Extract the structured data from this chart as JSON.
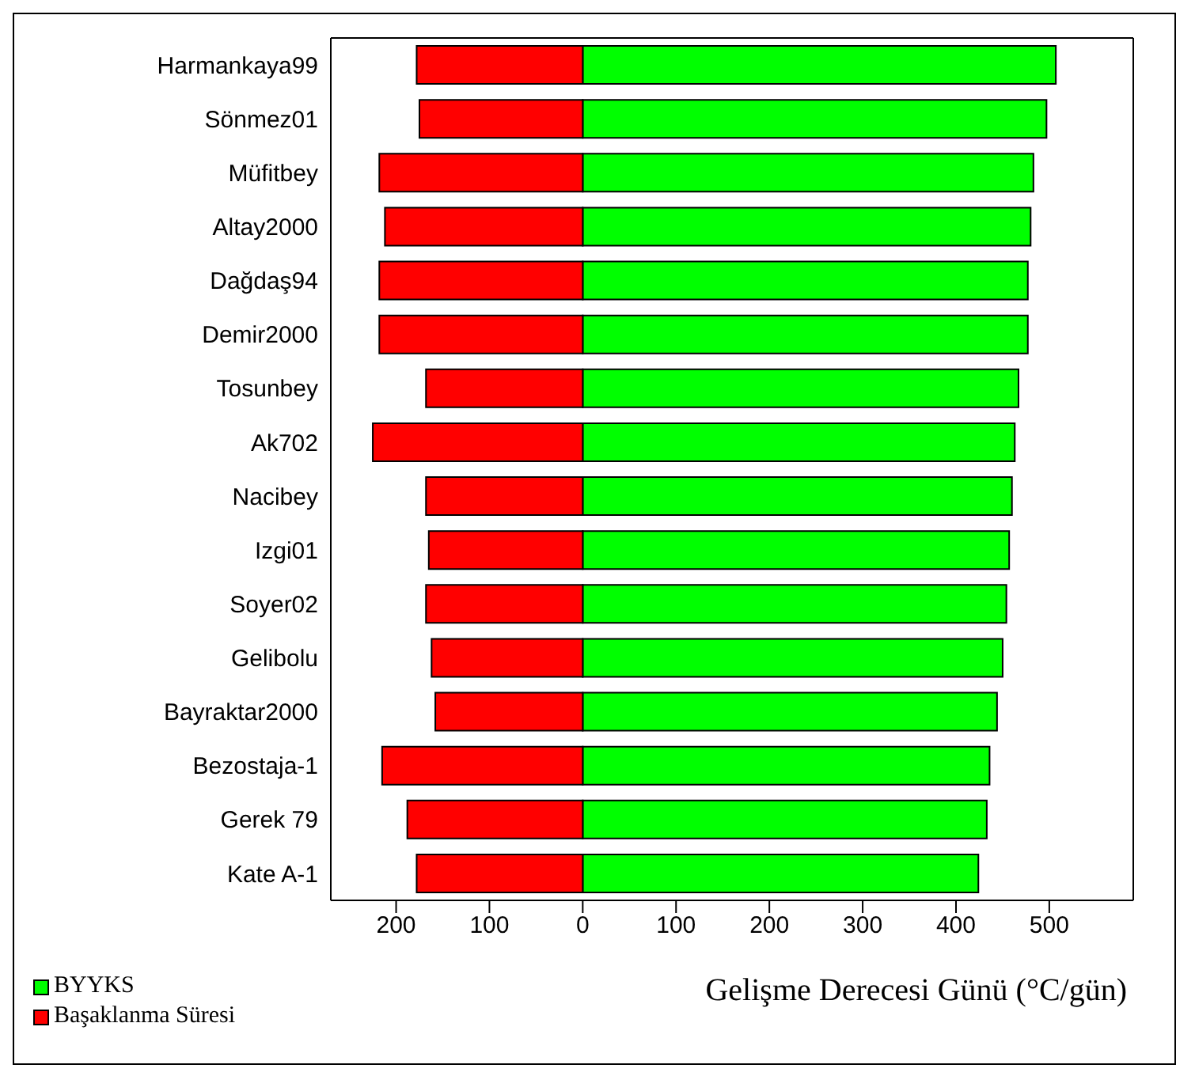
{
  "chart_data": {
    "type": "bar",
    "orientation": "horizontal",
    "stacked": true,
    "xlabel": "Gelişme Derecesi Günü (°C/gün)",
    "categories": [
      "Harmankaya99",
      "Sönmez01",
      "Müfitbey",
      "Altay2000",
      "Dağdaş94",
      "Demir2000",
      "Tosunbey",
      "Ak702",
      "Nacibey",
      "Izgi01",
      "Soyer02",
      "Gelibolu",
      "Bayraktar2000",
      "Bezostaja-1",
      "Gerek 79",
      "Kate A-1"
    ],
    "series": [
      {
        "name": "BYYKS",
        "color": "#00ff00",
        "values": [
          507,
          497,
          483,
          480,
          477,
          477,
          467,
          463,
          460,
          457,
          454,
          450,
          444,
          436,
          433,
          424
        ]
      },
      {
        "name": "Başaklanma Süresi",
        "color": "#ff0000",
        "values": [
          -178,
          -175,
          -218,
          -212,
          -218,
          -218,
          -168,
          -225,
          -168,
          -165,
          -168,
          -162,
          -158,
          -215,
          -188,
          -178
        ]
      }
    ],
    "xlim": [
      -270,
      590
    ],
    "xticks": [
      {
        "value": -200,
        "label": "200"
      },
      {
        "value": -100,
        "label": "100"
      },
      0,
      100,
      200,
      300,
      400,
      500
    ],
    "legend": "bottom left"
  }
}
